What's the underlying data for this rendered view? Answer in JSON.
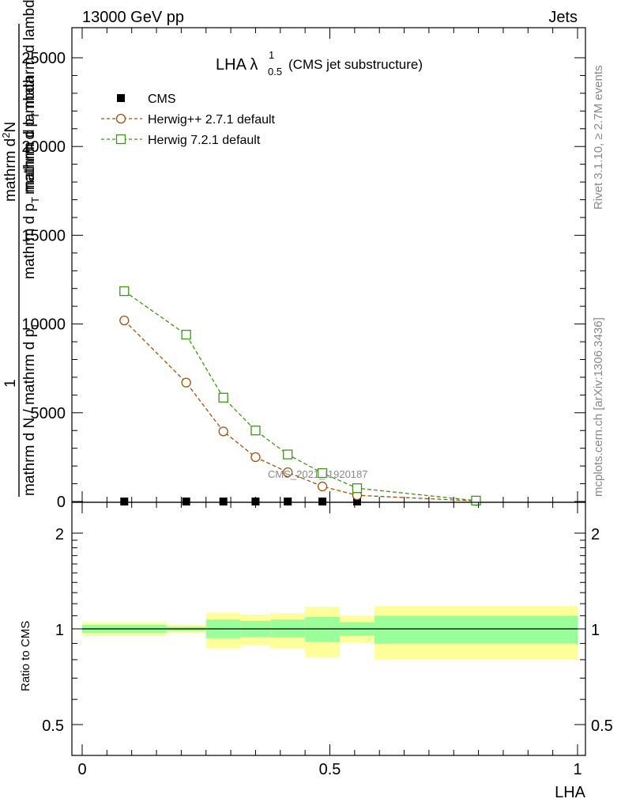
{
  "header": {
    "energy_label": "13000 GeV pp",
    "jets_label": "Jets"
  },
  "plot_title": {
    "main": "LHA λ",
    "sub": "0.5",
    "sup": "1",
    "note": "(CMS jet substructure)"
  },
  "side_labels": {
    "rivet": "Rivet 3.1.10, ≥ 2.7M events",
    "mcplots": "mcplots.cern.ch [arXiv:1306.3436]"
  },
  "watermark": "CMS_2021_I1920187",
  "y_label_main": {
    "numerator": "1",
    "fraction_line1": "mathrm d N / mathrm d p",
    "fraction_line1_sub": "T",
    "fraction_line2": "mathrm d p",
    "fraction_line2_sub": "T",
    "fraction_line2_tail": " mathrm d lambda",
    "overlay_top": "mathrm d",
    "overlay_top_sup": "2",
    "overlay_top_tail": "N",
    "overlay_mid": "mathrm d p",
    "overlay_mid_sub": "T",
    "overlay_mid_tail": " mathrm d lambda"
  },
  "y_label_ratio": "Ratio to CMS",
  "x_label": "LHA",
  "legend": [
    {
      "name": "CMS",
      "color": "#000000",
      "marker": "filled-square"
    },
    {
      "name": "Herwig++ 2.7.1 default",
      "color": "#a0520a",
      "marker": "open-circle"
    },
    {
      "name": "Herwig 7.2.1 default",
      "color": "#3c9614",
      "marker": "open-square"
    }
  ],
  "chart_data": [
    {
      "type": "line",
      "title": "LHA λ^1_0.5 (CMS jet substructure)",
      "xlabel": "LHA",
      "ylabel": "1 / (dN/dpT) · d²N / (dpT dλ)",
      "xlim": [
        0,
        1
      ],
      "ylim": [
        0,
        25000
      ],
      "y_ticks": [
        0,
        5000,
        10000,
        15000,
        20000,
        25000
      ],
      "y_tick_labels": [
        "0",
        "5000",
        "10000",
        "15000",
        "20000",
        "25000"
      ],
      "grid": false,
      "legend_position": "top-left",
      "series": [
        {
          "name": "CMS",
          "color": "#000000",
          "x": [
            0.085,
            0.21,
            0.285,
            0.35,
            0.415,
            0.485,
            0.555,
            0.795
          ],
          "y": [
            0,
            0,
            0,
            0,
            0,
            0,
            0,
            0
          ]
        },
        {
          "name": "Herwig++ 2.7.1 default",
          "color": "#a0520a",
          "x": [
            0.085,
            0.21,
            0.285,
            0.35,
            0.415,
            0.485,
            0.555,
            0.795
          ],
          "y": [
            10200,
            6700,
            3950,
            2500,
            1650,
            850,
            350,
            30
          ]
        },
        {
          "name": "Herwig 7.2.1 default",
          "color": "#3c9614",
          "x": [
            0.085,
            0.21,
            0.285,
            0.35,
            0.415,
            0.485,
            0.555,
            0.795
          ],
          "y": [
            11850,
            9400,
            5850,
            4000,
            2650,
            1600,
            750,
            50
          ]
        }
      ]
    },
    {
      "type": "area",
      "title": "",
      "xlabel": "LHA",
      "ylabel": "Ratio to CMS",
      "xlim": [
        0,
        1
      ],
      "ylim": [
        0.37,
        2.35
      ],
      "y_log": true,
      "x_ticks": [
        0,
        0.5,
        1
      ],
      "x_tick_labels": [
        "0",
        "0.5",
        "1"
      ],
      "y_ticks": [
        0.5,
        1,
        2
      ],
      "y_tick_labels": [
        "0.5",
        "1",
        "2"
      ],
      "reference_line": 1,
      "bins": [
        {
          "x_low": 0.0,
          "x_high": 0.17,
          "band_outer": [
            0.95,
            1.05
          ],
          "band_inner": [
            0.97,
            1.03
          ]
        },
        {
          "x_low": 0.17,
          "x_high": 0.25,
          "band_outer": [
            0.97,
            1.03
          ],
          "band_inner": [
            0.985,
            1.015
          ]
        },
        {
          "x_low": 0.25,
          "x_high": 0.32,
          "band_outer": [
            0.87,
            1.125
          ],
          "band_inner": [
            0.935,
            1.07
          ]
        },
        {
          "x_low": 0.32,
          "x_high": 0.38,
          "band_outer": [
            0.89,
            1.11
          ],
          "band_inner": [
            0.945,
            1.06
          ]
        },
        {
          "x_low": 0.38,
          "x_high": 0.45,
          "band_outer": [
            0.87,
            1.12
          ],
          "band_inner": [
            0.94,
            1.07
          ]
        },
        {
          "x_low": 0.45,
          "x_high": 0.52,
          "band_outer": [
            0.815,
            1.175
          ],
          "band_inner": [
            0.91,
            1.09
          ]
        },
        {
          "x_low": 0.52,
          "x_high": 0.59,
          "band_outer": [
            0.905,
            1.1
          ],
          "band_inner": [
            0.955,
            1.05
          ]
        },
        {
          "x_low": 0.59,
          "x_high": 1.0,
          "band_outer": [
            0.8,
            1.18
          ],
          "band_inner": [
            0.9,
            1.1
          ]
        }
      ],
      "colors": {
        "outer_band": "#ffff99",
        "inner_band": "#99ff99",
        "reference_line": "#000000"
      }
    }
  ]
}
